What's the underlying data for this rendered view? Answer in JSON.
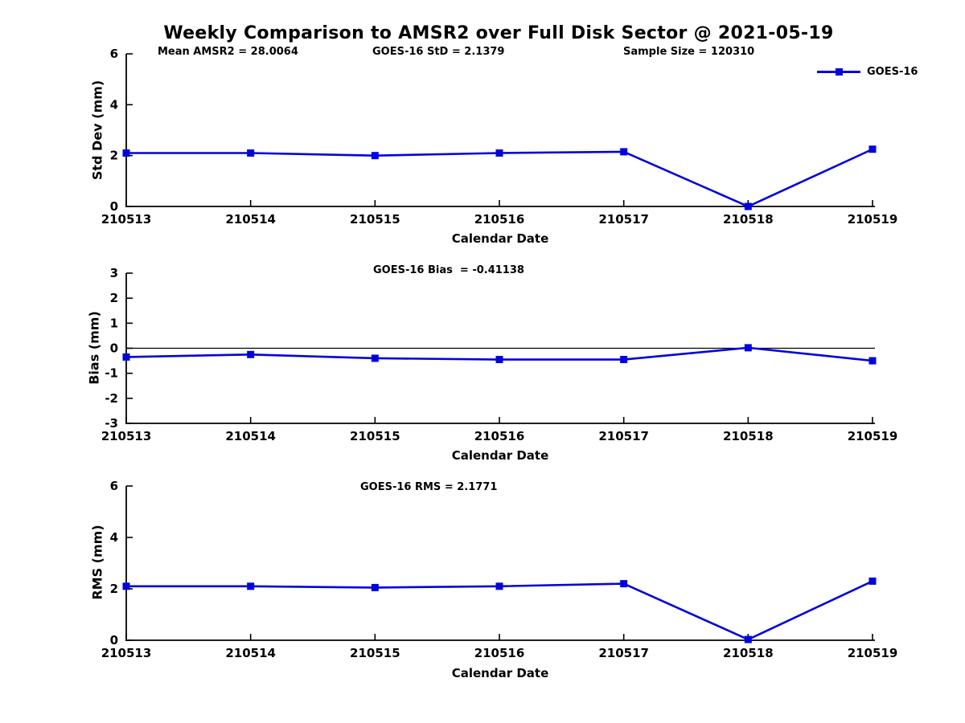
{
  "title": "Weekly Comparison to AMSR2 over Full Disk Sector @ 2021-05-19",
  "legend": {
    "label": "GOES-16"
  },
  "colors": {
    "line": "#0202dd",
    "axis": "#000000",
    "text": "#000000"
  },
  "chart_data": [
    {
      "id": "stddev",
      "type": "line",
      "title": "Std Dev subplot",
      "annotations": [
        "Mean AMSR2 = 28.0064",
        "GOES-16 StD = 2.1379",
        "Sample Size = 120310"
      ],
      "ylabel": "Std Dev (mm)",
      "xlabel": "Calendar Date",
      "ylim": [
        0,
        6
      ],
      "yticks": [
        0,
        2,
        4,
        6
      ],
      "categories": [
        "210513",
        "210514",
        "210515",
        "210516",
        "210517",
        "210518",
        "210519"
      ],
      "series": [
        {
          "name": "GOES-16",
          "values": [
            2.1,
            2.1,
            2.0,
            2.1,
            2.15,
            0.0,
            2.25
          ]
        }
      ],
      "zero_line": false,
      "legend_position": "top-right",
      "grid": false
    },
    {
      "id": "bias",
      "type": "line",
      "title": "Bias subplot",
      "annotations": [
        "GOES-16 Bias  = -0.41138"
      ],
      "ylabel": "Bias (mm)",
      "xlabel": "Calendar Date",
      "ylim": [
        -3,
        3
      ],
      "yticks": [
        3,
        2,
        1,
        0,
        -1,
        -2,
        -3
      ],
      "categories": [
        "210513",
        "210514",
        "210515",
        "210516",
        "210517",
        "210518",
        "210519"
      ],
      "series": [
        {
          "name": "GOES-16",
          "values": [
            -0.35,
            -0.25,
            -0.4,
            -0.45,
            -0.45,
            0.02,
            -0.5
          ]
        }
      ],
      "zero_line": true,
      "grid": false
    },
    {
      "id": "rms",
      "type": "line",
      "title": "RMS subplot",
      "annotations": [
        "GOES-16 RMS = 2.1771"
      ],
      "ylabel": "RMS (mm)",
      "xlabel": "Calendar Date",
      "ylim": [
        0,
        6
      ],
      "yticks": [
        0,
        2,
        4,
        6
      ],
      "categories": [
        "210513",
        "210514",
        "210515",
        "210516",
        "210517",
        "210518",
        "210519"
      ],
      "series": [
        {
          "name": "GOES-16",
          "values": [
            2.1,
            2.1,
            2.05,
            2.1,
            2.2,
            0.03,
            2.3
          ]
        }
      ],
      "zero_line": false,
      "grid": false
    }
  ]
}
